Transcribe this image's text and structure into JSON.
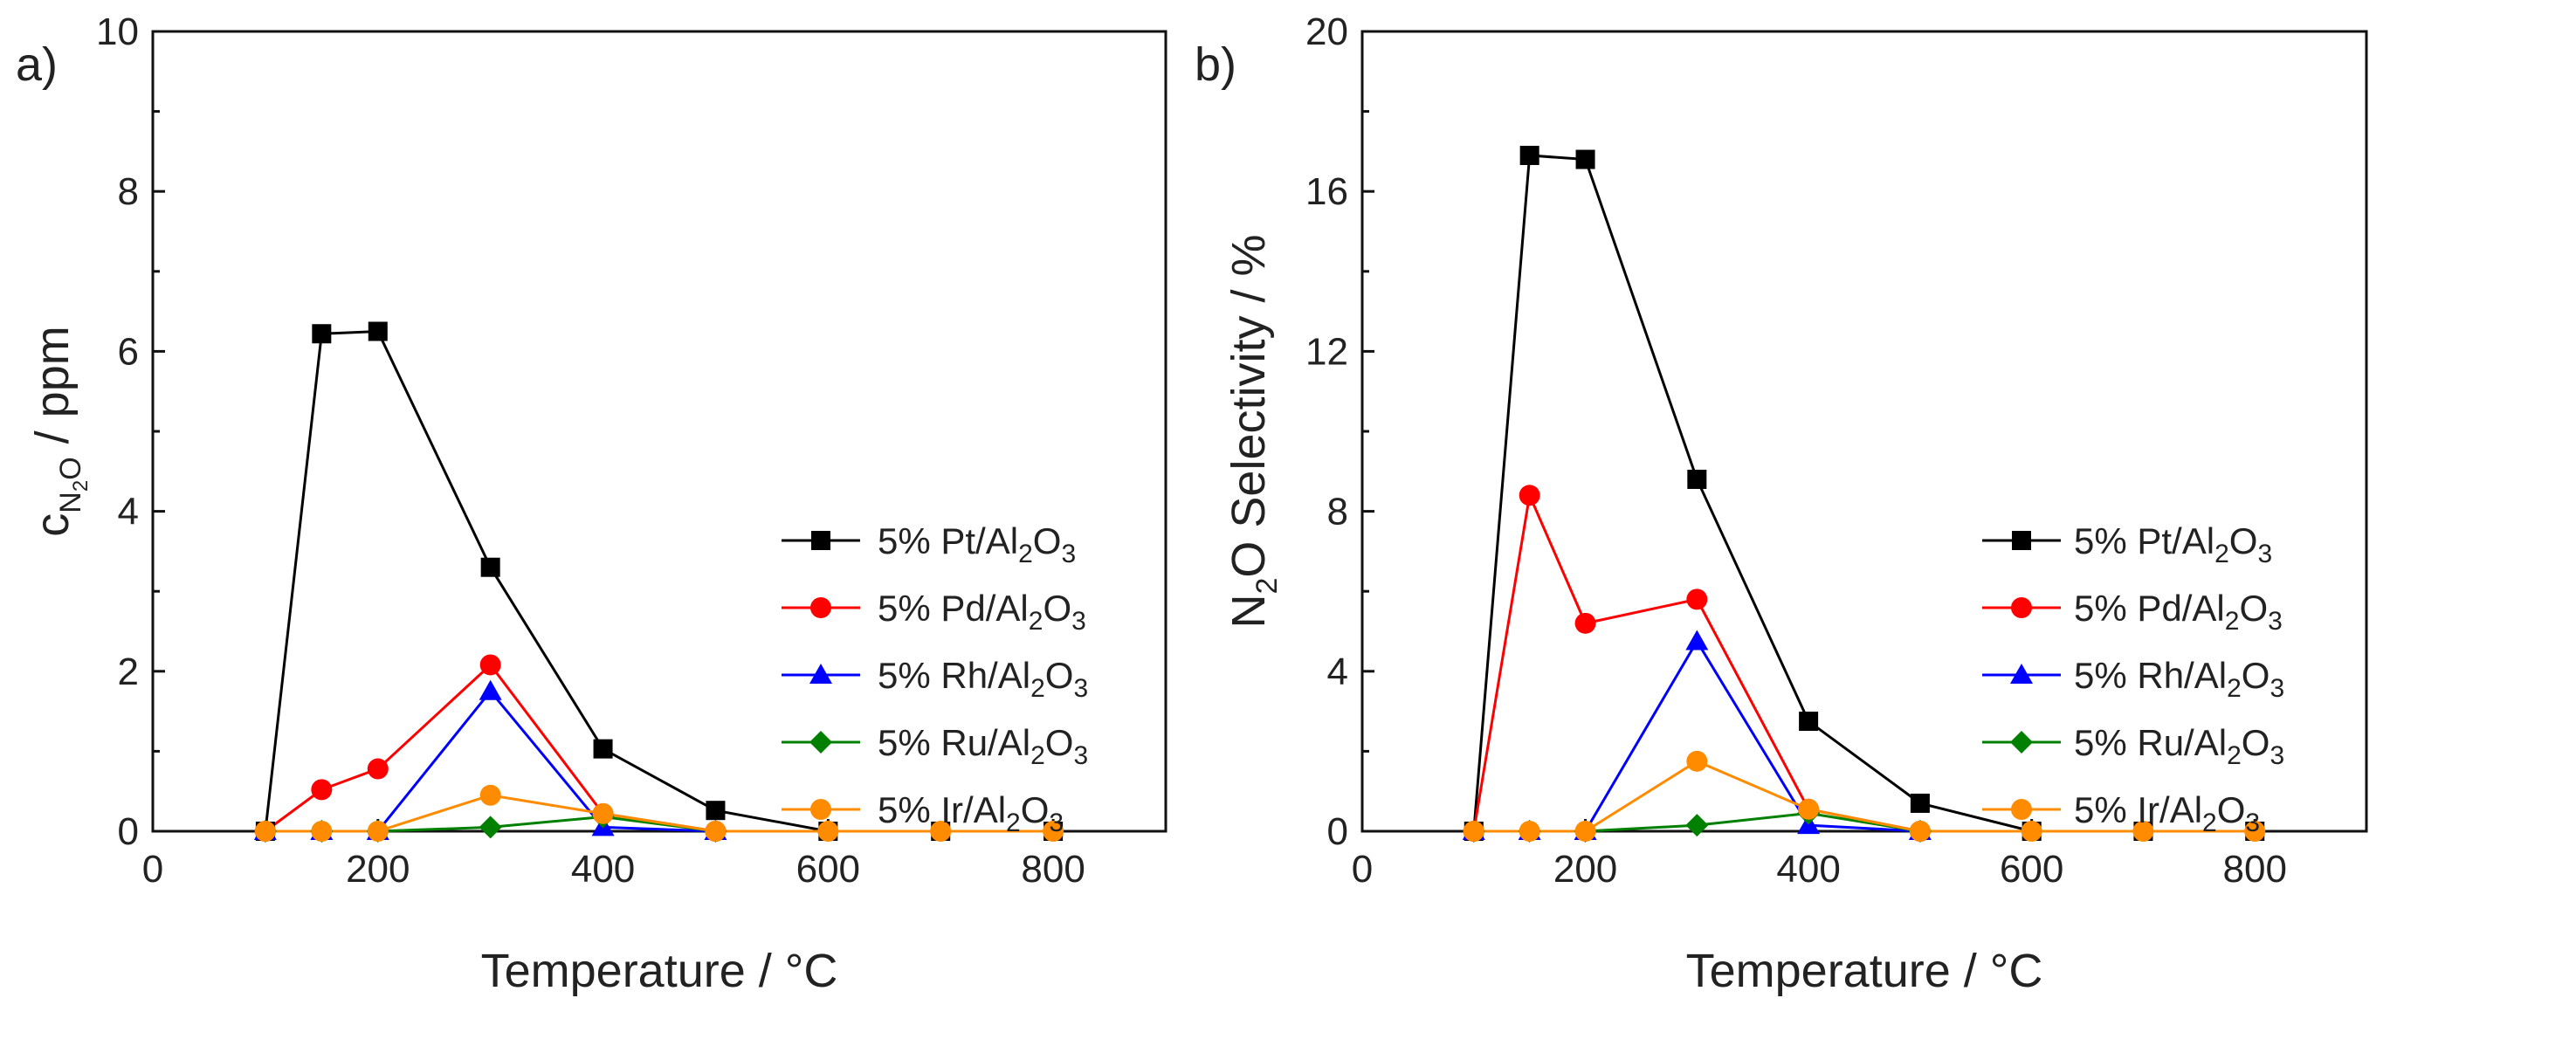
{
  "chart_data": [
    {
      "panel_label": "a)",
      "type": "line",
      "xlabel": "Temperature / °C",
      "ylabel": {
        "main": "c",
        "sub_a": "N",
        "sub_b": "2",
        "sub_c": "O",
        "rest": " / ppm"
      },
      "xlim": [
        0,
        900
      ],
      "ylim": [
        0,
        10
      ],
      "xticks": [
        0,
        200,
        400,
        600,
        800
      ],
      "yticks": [
        0,
        2,
        4,
        6,
        8,
        10
      ],
      "legend_position": "center-right",
      "series": [
        {
          "name": "5% Pt/Al2O3",
          "label_prefix": "5% Pt/Al",
          "color": "#000000",
          "marker": "square",
          "x": [
            100,
            150,
            200,
            300,
            400,
            500,
            600,
            700,
            800
          ],
          "y": [
            0,
            6.22,
            6.25,
            3.3,
            1.03,
            0.26,
            0,
            0,
            0
          ]
        },
        {
          "name": "5% Pd/Al2O3",
          "label_prefix": "5% Pd/Al",
          "color": "#ff0000",
          "marker": "circle",
          "x": [
            100,
            150,
            200,
            300,
            400,
            500
          ],
          "y": [
            0,
            0.52,
            0.78,
            2.08,
            0.22,
            0
          ]
        },
        {
          "name": "5% Rh/Al2O3",
          "label_prefix": "5% Rh/Al",
          "color": "#0000ff",
          "marker": "triangle",
          "x": [
            100,
            150,
            200,
            300,
            400,
            500
          ],
          "y": [
            0,
            0,
            0,
            1.75,
            0.05,
            0
          ]
        },
        {
          "name": "5% Ru/Al2O3",
          "label_prefix": "5% Ru/Al",
          "color": "#008000",
          "marker": "diamond",
          "x": [
            100,
            150,
            200,
            300,
            400,
            500
          ],
          "y": [
            0,
            0,
            0,
            0.05,
            0.18,
            0
          ]
        },
        {
          "name": "5% Ir/Al2O3",
          "label_prefix": "5% Ir/Al",
          "color": "#ff8c00",
          "marker": "circle",
          "x": [
            100,
            150,
            200,
            300,
            400,
            500,
            600,
            700,
            800
          ],
          "y": [
            0,
            0,
            0,
            0.45,
            0.22,
            0,
            0,
            0,
            0
          ]
        }
      ]
    },
    {
      "panel_label": "b)",
      "type": "line",
      "xlabel": "Temperature / °C",
      "ylabel": {
        "main": "N",
        "sub_a": "2",
        "rest": "O Selectivity / %"
      },
      "xlim": [
        0,
        900
      ],
      "ylim": [
        0,
        20
      ],
      "xticks": [
        0,
        200,
        400,
        600,
        800
      ],
      "yticks": [
        0,
        4,
        8,
        12,
        16,
        20
      ],
      "legend_position": "center-right",
      "series": [
        {
          "name": "5% Pt/Al2O3",
          "label_prefix": "5% Pt/Al",
          "color": "#000000",
          "marker": "square",
          "x": [
            100,
            150,
            200,
            300,
            400,
            500,
            600,
            700,
            800
          ],
          "y": [
            0,
            16.9,
            16.8,
            8.8,
            2.75,
            0.7,
            0,
            0,
            0
          ]
        },
        {
          "name": "5% Pd/Al2O3",
          "label_prefix": "5% Pd/Al",
          "color": "#ff0000",
          "marker": "circle",
          "x": [
            100,
            150,
            200,
            300,
            400,
            500
          ],
          "y": [
            0,
            8.4,
            5.2,
            5.8,
            0.55,
            0
          ]
        },
        {
          "name": "5% Rh/Al2O3",
          "label_prefix": "5% Rh/Al",
          "color": "#0000ff",
          "marker": "triangle",
          "x": [
            100,
            150,
            200,
            300,
            400,
            500
          ],
          "y": [
            0,
            0,
            0,
            4.75,
            0.15,
            0
          ]
        },
        {
          "name": "5% Ru/Al2O3",
          "label_prefix": "5% Ru/Al",
          "color": "#008000",
          "marker": "diamond",
          "x": [
            100,
            150,
            200,
            300,
            400,
            500
          ],
          "y": [
            0,
            0,
            0,
            0.15,
            0.45,
            0
          ]
        },
        {
          "name": "5% Ir/Al2O3",
          "label_prefix": "5% Ir/Al",
          "color": "#ff8c00",
          "marker": "circle",
          "x": [
            100,
            150,
            200,
            300,
            400,
            500,
            600,
            700,
            800
          ],
          "y": [
            0,
            0,
            0,
            1.75,
            0.55,
            0,
            0,
            0,
            0
          ]
        }
      ]
    }
  ],
  "legend_suffix": {
    "sub_a": "2",
    "mid": "O",
    "sub_b": "3"
  }
}
